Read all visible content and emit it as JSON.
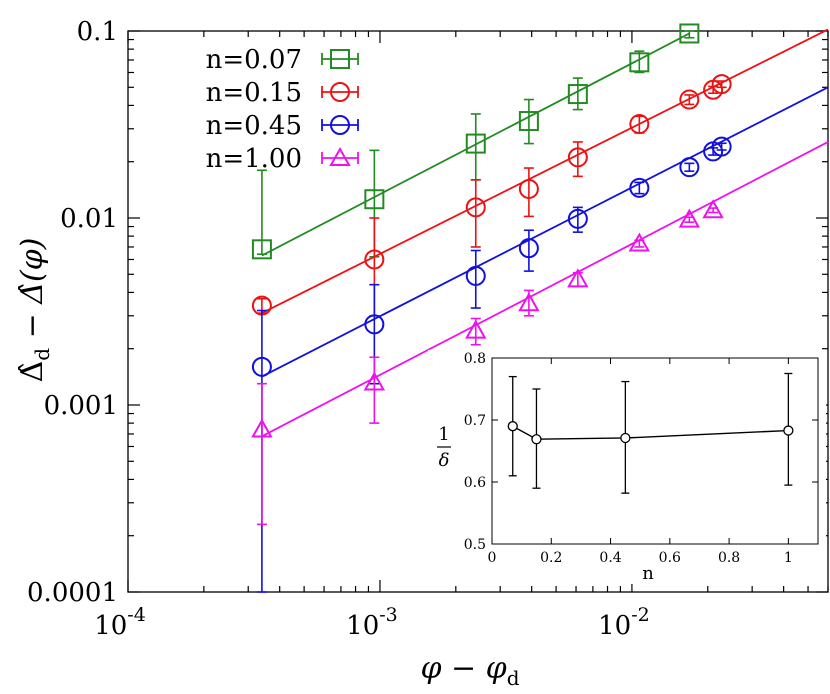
{
  "chart_data": {
    "type": "scatter",
    "xscale": "log",
    "yscale": "log",
    "xlim": [
      0.0001,
      0.06
    ],
    "ylim": [
      0.0001,
      0.1
    ],
    "xlabel": "φ − φ_d",
    "xlabel_parts": {
      "main": "φ − φ",
      "sub": "d"
    },
    "ylabel": "Δ̂_d − Δ̂(φ)",
    "ylabel_parts": {
      "main_a": "Δ̂",
      "sub": "d",
      "main_b": " − Δ̂(φ)"
    },
    "xticks": [
      {
        "value": 0.0001,
        "base": "10",
        "exp": "-4"
      },
      {
        "value": 0.001,
        "base": "10",
        "exp": "-3"
      },
      {
        "value": 0.01,
        "base": "10",
        "exp": "-2"
      }
    ],
    "yticks": [
      {
        "value": 0.1,
        "label": "0.1"
      },
      {
        "value": 0.01,
        "label": "0.01"
      },
      {
        "value": 0.001,
        "label": "0.001"
      },
      {
        "value": 0.0001,
        "label": "0.0001"
      }
    ],
    "legend_position": "top-left",
    "series": [
      {
        "name": "n=0.07",
        "color": "#228b22",
        "marker": "square",
        "points": [
          {
            "x": 0.00034,
            "y": 0.0068,
            "ylo": 0.0064,
            "yhi": 0.018
          },
          {
            "x": 0.00095,
            "y": 0.0126,
            "ylo": 0.0062,
            "yhi": 0.023
          },
          {
            "x": 0.0024,
            "y": 0.025,
            "ylo": 0.016,
            "yhi": 0.036
          },
          {
            "x": 0.0039,
            "y": 0.033,
            "ylo": 0.025,
            "yhi": 0.043
          },
          {
            "x": 0.0061,
            "y": 0.046,
            "ylo": 0.038,
            "yhi": 0.056
          },
          {
            "x": 0.0107,
            "y": 0.068,
            "ylo": 0.06,
            "yhi": 0.078
          },
          {
            "x": 0.0169,
            "y": 0.097,
            "ylo": 0.092,
            "yhi": 0.1
          }
        ],
        "fit": {
          "x": [
            0.00034,
            0.0169
          ],
          "y": [
            0.0063,
            0.097
          ]
        }
      },
      {
        "name": "n=0.15",
        "color": "#ee1111",
        "marker": "circle",
        "points": [
          {
            "x": 0.00034,
            "y": 0.0034,
            "ylo": 0.0031,
            "yhi": 0.0037
          },
          {
            "x": 0.00095,
            "y": 0.006,
            "ylo": 0.003,
            "yhi": 0.01
          },
          {
            "x": 0.0024,
            "y": 0.0114,
            "ylo": 0.007,
            "yhi": 0.016
          },
          {
            "x": 0.0039,
            "y": 0.0143,
            "ylo": 0.0102,
            "yhi": 0.0185
          },
          {
            "x": 0.0061,
            "y": 0.0211,
            "ylo": 0.0167,
            "yhi": 0.0255
          },
          {
            "x": 0.0107,
            "y": 0.0318,
            "ylo": 0.0285,
            "yhi": 0.035
          },
          {
            "x": 0.0169,
            "y": 0.043,
            "ylo": 0.0405,
            "yhi": 0.0455
          },
          {
            "x": 0.021,
            "y": 0.0485,
            "ylo": 0.0465,
            "yhi": 0.0505
          },
          {
            "x": 0.0227,
            "y": 0.052,
            "ylo": 0.05,
            "yhi": 0.054
          }
        ],
        "fit": {
          "x": [
            0.00034,
            0.06
          ],
          "y": [
            0.0031,
            0.102
          ]
        }
      },
      {
        "name": "n=0.45",
        "color": "#1111dd",
        "marker": "circle",
        "points": [
          {
            "x": 0.00034,
            "y": 0.0016,
            "ylo": 0.0001,
            "yhi": 0.0032
          },
          {
            "x": 0.00095,
            "y": 0.0027,
            "ylo": 0.0013,
            "yhi": 0.0044
          },
          {
            "x": 0.0024,
            "y": 0.0049,
            "ylo": 0.0033,
            "yhi": 0.0067
          },
          {
            "x": 0.0039,
            "y": 0.0069,
            "ylo": 0.0052,
            "yhi": 0.0086
          },
          {
            "x": 0.0061,
            "y": 0.0099,
            "ylo": 0.0084,
            "yhi": 0.0114
          },
          {
            "x": 0.0107,
            "y": 0.0145,
            "ylo": 0.0135,
            "yhi": 0.0155
          },
          {
            "x": 0.0169,
            "y": 0.0187,
            "ylo": 0.0178,
            "yhi": 0.0196
          },
          {
            "x": 0.021,
            "y": 0.0227,
            "ylo": 0.0217,
            "yhi": 0.0237
          },
          {
            "x": 0.0227,
            "y": 0.0241,
            "ylo": 0.0231,
            "yhi": 0.0251
          }
        ],
        "fit": {
          "x": [
            0.00034,
            0.06
          ],
          "y": [
            0.00142,
            0.05
          ]
        }
      },
      {
        "name": "n=1.00",
        "color": "#ee11ee",
        "marker": "triangle",
        "points": [
          {
            "x": 0.00034,
            "y": 0.00074,
            "ylo": 0.00023,
            "yhi": 0.0013
          },
          {
            "x": 0.00095,
            "y": 0.00132,
            "ylo": 0.0008,
            "yhi": 0.0018
          },
          {
            "x": 0.0024,
            "y": 0.0025,
            "ylo": 0.0021,
            "yhi": 0.0029
          },
          {
            "x": 0.0039,
            "y": 0.0035,
            "ylo": 0.003,
            "yhi": 0.0041
          },
          {
            "x": 0.0061,
            "y": 0.0047,
            "ylo": 0.0043,
            "yhi": 0.0051
          },
          {
            "x": 0.0107,
            "y": 0.0073,
            "ylo": 0.007,
            "yhi": 0.0076
          },
          {
            "x": 0.0169,
            "y": 0.0098,
            "ylo": 0.0095,
            "yhi": 0.0101
          },
          {
            "x": 0.021,
            "y": 0.011,
            "ylo": 0.0107,
            "yhi": 0.0113
          }
        ],
        "fit": {
          "x": [
            0.00034,
            0.06
          ],
          "y": [
            0.00068,
            0.0255
          ]
        }
      }
    ],
    "inset": {
      "type": "line",
      "xlabel": "n",
      "ylabel_num": "1",
      "ylabel_den": "δ",
      "xlim": [
        0,
        1.1
      ],
      "ylim": [
        0.5,
        0.8
      ],
      "xticks": [
        0,
        0.2,
        0.4,
        0.6,
        0.8,
        1
      ],
      "xtick_labels": [
        "0",
        "0.2",
        "0.4",
        "0.6",
        "0.8",
        "1"
      ],
      "yticks": [
        0.5,
        0.6,
        0.7,
        0.8
      ],
      "ytick_labels": [
        "0.5",
        "0.6",
        "0.7",
        "0.8"
      ],
      "color": "#000000",
      "points": [
        {
          "x": 0.07,
          "y": 0.69,
          "ylo": 0.61,
          "yhi": 0.77
        },
        {
          "x": 0.15,
          "y": 0.669,
          "ylo": 0.59,
          "yhi": 0.75
        },
        {
          "x": 0.45,
          "y": 0.671,
          "ylo": 0.582,
          "yhi": 0.762
        },
        {
          "x": 1.0,
          "y": 0.683,
          "ylo": 0.595,
          "yhi": 0.775
        }
      ]
    }
  }
}
